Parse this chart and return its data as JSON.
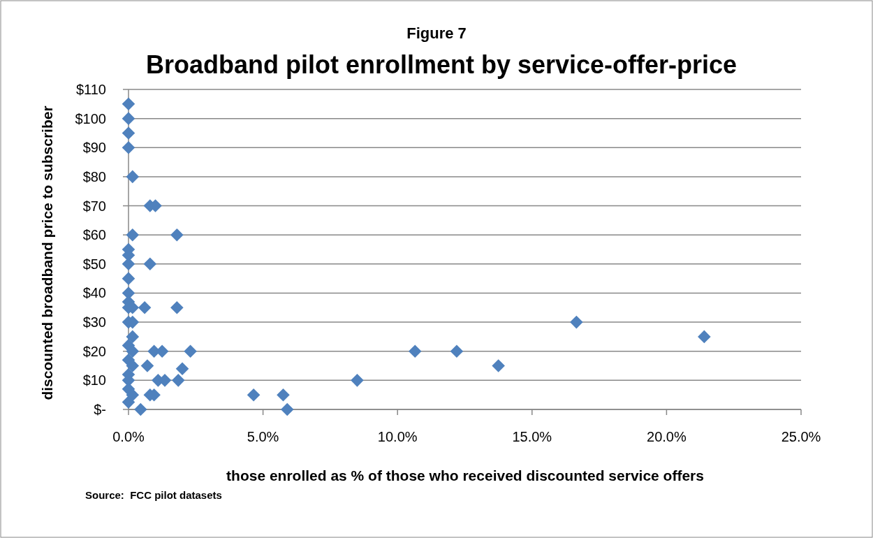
{
  "chart_data": {
    "type": "scatter",
    "title": "Broadband pilot enrollment by service-offer-price",
    "subtitle": "Figure 7",
    "xlabel": "those enrolled as % of those who received discounted service offers",
    "ylabel": "discounted broadband price to subscriber",
    "annotations": [
      "Source:  FCC pilot datasets"
    ],
    "series": [
      {
        "color": "#4f81bd",
        "x": [
          0,
          0,
          0,
          0,
          0,
          0,
          0,
          0,
          0,
          0,
          0,
          0,
          0,
          0,
          0,
          0,
          0,
          0,
          0.15,
          0.15,
          0.15,
          0.15,
          0.15,
          0.15,
          0.15,
          0.15,
          0.8,
          1.0,
          1.8,
          0.8,
          0.6,
          1.8,
          0.95,
          1.25,
          2.3,
          0.7,
          2.0,
          1.1,
          1.35,
          1.85,
          0.8,
          0.95,
          0.45,
          4.65,
          5.75,
          5.9,
          8.5,
          10.65,
          12.2,
          13.75,
          16.65,
          21.4
        ],
        "values": [
          105,
          100,
          95,
          90,
          55,
          53,
          50,
          45,
          40,
          37,
          35,
          30,
          22,
          17,
          12,
          10,
          7,
          2.5,
          80,
          60,
          35,
          30,
          25,
          20,
          15,
          5,
          70,
          70,
          60,
          50,
          35,
          35,
          20,
          20,
          20,
          15,
          14,
          10,
          10,
          10,
          5,
          5,
          0,
          5,
          5,
          0,
          10,
          20,
          20,
          15,
          30,
          25
        ]
      }
    ],
    "xlim": [
      0,
      25
    ],
    "xticks": [
      {
        "value": 0,
        "label": "0.0%"
      },
      {
        "value": 5,
        "label": "5.0%"
      },
      {
        "value": 10,
        "label": "10.0%"
      },
      {
        "value": 15,
        "label": "15.0%"
      },
      {
        "value": 20,
        "label": "20.0%"
      },
      {
        "value": 25,
        "label": "25.0%"
      }
    ],
    "ylim": [
      0,
      110
    ],
    "yticks": [
      {
        "value": 0,
        "label": "$-"
      },
      {
        "value": 10,
        "label": "$10"
      },
      {
        "value": 20,
        "label": "$20"
      },
      {
        "value": 30,
        "label": "$30"
      },
      {
        "value": 40,
        "label": "$40"
      },
      {
        "value": 50,
        "label": "$50"
      },
      {
        "value": 60,
        "label": "$60"
      },
      {
        "value": 70,
        "label": "$70"
      },
      {
        "value": 80,
        "label": "$80"
      },
      {
        "value": 90,
        "label": "$90"
      },
      {
        "value": 100,
        "label": "$100"
      },
      {
        "value": 110,
        "label": "$110"
      }
    ],
    "grid": "y",
    "marker": "diamond"
  }
}
